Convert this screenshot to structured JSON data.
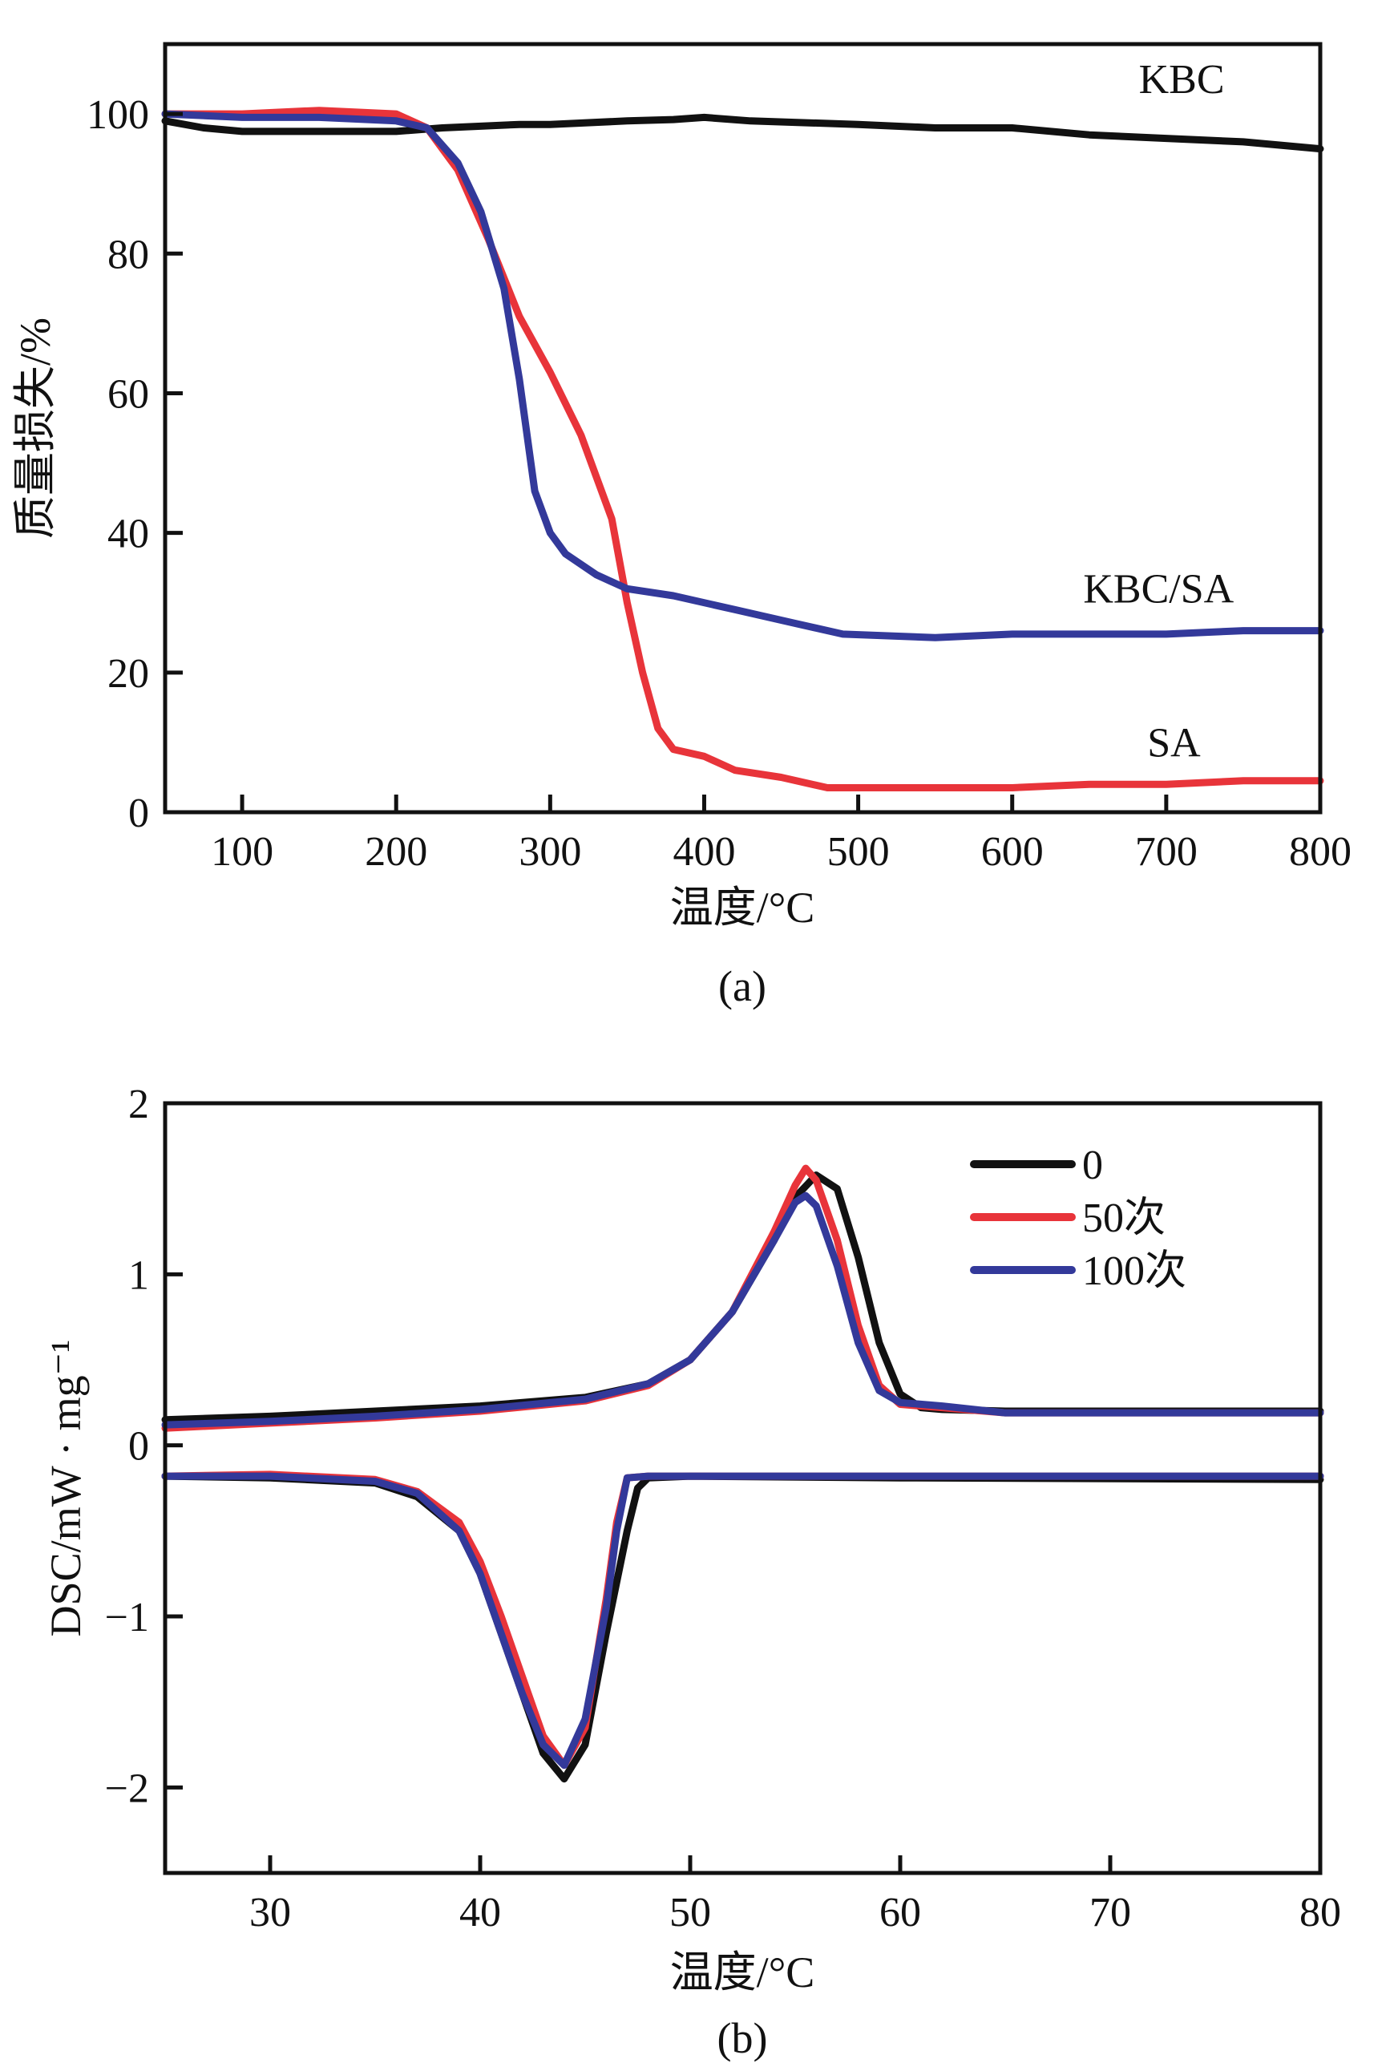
{
  "chart_data": [
    {
      "id": "a",
      "type": "line",
      "caption": "(a)",
      "title": "",
      "xlabel": "温度/°C",
      "ylabel": "质量损失/%",
      "xlim": [
        50,
        800
      ],
      "ylim": [
        0,
        110
      ],
      "xticks": [
        100,
        200,
        300,
        400,
        500,
        600,
        700,
        800
      ],
      "yticks": [
        0,
        20,
        40,
        60,
        80,
        100
      ],
      "grid": false,
      "legend": "none (inline curve labels)",
      "series": [
        {
          "name": "KBC",
          "color": "#111111",
          "x": [
            50,
            75,
            100,
            150,
            200,
            230,
            280,
            300,
            350,
            380,
            400,
            430,
            500,
            550,
            600,
            650,
            700,
            750,
            800
          ],
          "y": [
            99,
            98,
            97.5,
            97.5,
            97.5,
            98,
            98.5,
            98.5,
            99,
            99.2,
            99.5,
            99,
            98.5,
            98,
            98,
            97,
            96.5,
            96,
            95
          ]
        },
        {
          "name": "SA",
          "color": "#e8343a",
          "x": [
            50,
            100,
            150,
            200,
            220,
            240,
            260,
            280,
            300,
            320,
            340,
            350,
            360,
            370,
            380,
            400,
            420,
            450,
            480,
            500,
            550,
            600,
            650,
            700,
            750,
            800
          ],
          "y": [
            100,
            100,
            100.5,
            100,
            98,
            92,
            82,
            71,
            63,
            54,
            42,
            30,
            20,
            12,
            9,
            8,
            6,
            5,
            3.5,
            3.5,
            3.5,
            3.5,
            4,
            4,
            4.5,
            4.5
          ]
        },
        {
          "name": "KBC/SA",
          "color": "#33399a",
          "x": [
            50,
            100,
            150,
            200,
            220,
            240,
            255,
            270,
            280,
            290,
            300,
            310,
            330,
            350,
            380,
            420,
            460,
            490,
            550,
            600,
            650,
            700,
            750,
            800
          ],
          "y": [
            100,
            99.5,
            99.5,
            99,
            98,
            93,
            86,
            75,
            62,
            46,
            40,
            37,
            34,
            32,
            31,
            29,
            27,
            25.5,
            25,
            25.5,
            25.5,
            25.5,
            26,
            26
          ]
        }
      ],
      "annotations": [
        {
          "text": "KBC",
          "x": 710,
          "y": 103
        },
        {
          "text": "KBC/SA",
          "x": 695,
          "y": 30
        },
        {
          "text": "SA",
          "x": 705,
          "y": 8
        }
      ]
    },
    {
      "id": "b",
      "type": "line",
      "caption": "(b)",
      "title": "",
      "xlabel": "温度/°C",
      "ylabel": "DSC/mW · mg⁻¹",
      "xlim": [
        25,
        80
      ],
      "ylim": [
        -2.5,
        2
      ],
      "xticks": [
        30,
        40,
        50,
        60,
        70,
        80
      ],
      "yticks": [
        -2,
        -1,
        0,
        1,
        2
      ],
      "ytick_labels": [
        "−2",
        "−1",
        "0",
        "1",
        "2"
      ],
      "grid": false,
      "legend": "top-right",
      "series": [
        {
          "name": "0",
          "color": "#111111",
          "heating": {
            "x": [
              25,
              30,
              35,
              40,
              45,
              48,
              50,
              52,
              54,
              55,
              56,
              57,
              58,
              59,
              60,
              61,
              62,
              65,
              70,
              80
            ],
            "y": [
              0.15,
              0.17,
              0.2,
              0.23,
              0.28,
              0.36,
              0.5,
              0.78,
              1.2,
              1.45,
              1.58,
              1.5,
              1.1,
              0.6,
              0.3,
              0.22,
              0.21,
              0.2,
              0.2,
              0.2
            ]
          },
          "cooling": {
            "x": [
              25,
              30,
              35,
              37,
              39,
              40,
              41,
              42,
              43,
              44,
              45,
              46,
              47,
              47.5,
              48,
              50,
              60,
              80
            ],
            "y": [
              -0.18,
              -0.19,
              -0.22,
              -0.3,
              -0.5,
              -0.75,
              -1.1,
              -1.45,
              -1.8,
              -1.95,
              -1.75,
              -1.1,
              -0.5,
              -0.25,
              -0.19,
              -0.18,
              -0.19,
              -0.2
            ]
          }
        },
        {
          "name": "50次",
          "color": "#e8343a",
          "heating": {
            "x": [
              25,
              30,
              35,
              40,
              45,
              48,
              50,
              52,
              54,
              55,
              55.5,
              56,
              57,
              58,
              59,
              60,
              62,
              65,
              70,
              80
            ],
            "y": [
              0.1,
              0.13,
              0.16,
              0.2,
              0.26,
              0.35,
              0.5,
              0.78,
              1.25,
              1.52,
              1.62,
              1.55,
              1.2,
              0.7,
              0.35,
              0.24,
              0.22,
              0.19,
              0.19,
              0.19
            ]
          },
          "cooling": {
            "x": [
              25,
              30,
              35,
              37,
              39,
              40,
              41,
              42,
              43,
              44,
              45,
              46,
              46.5,
              47,
              48,
              50,
              60,
              80
            ],
            "y": [
              -0.18,
              -0.17,
              -0.2,
              -0.27,
              -0.45,
              -0.68,
              -1.0,
              -1.35,
              -1.7,
              -1.87,
              -1.65,
              -0.9,
              -0.45,
              -0.19,
              -0.18,
              -0.18,
              -0.18,
              -0.18
            ]
          }
        },
        {
          "name": "100次",
          "color": "#33399a",
          "heating": {
            "x": [
              25,
              30,
              35,
              40,
              45,
              48,
              50,
              52,
              54,
              55,
              55.5,
              56,
              57,
              58,
              59,
              60,
              62,
              65,
              70,
              80
            ],
            "y": [
              0.12,
              0.14,
              0.17,
              0.21,
              0.27,
              0.36,
              0.5,
              0.78,
              1.2,
              1.42,
              1.46,
              1.4,
              1.05,
              0.6,
              0.32,
              0.25,
              0.23,
              0.19,
              0.19,
              0.19
            ]
          },
          "cooling": {
            "x": [
              25,
              30,
              35,
              37,
              39,
              40,
              41,
              42,
              43,
              44,
              45,
              46,
              46.5,
              47,
              48,
              50,
              60,
              80
            ],
            "y": [
              -0.18,
              -0.18,
              -0.21,
              -0.28,
              -0.5,
              -0.75,
              -1.1,
              -1.45,
              -1.75,
              -1.87,
              -1.6,
              -0.95,
              -0.5,
              -0.19,
              -0.18,
              -0.18,
              -0.18,
              -0.18
            ]
          }
        }
      ]
    }
  ]
}
